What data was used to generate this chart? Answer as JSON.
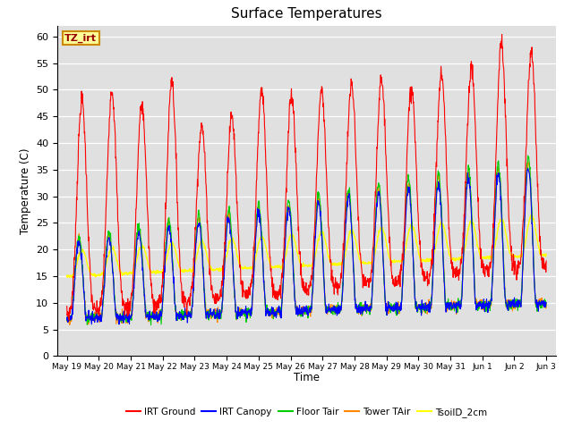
{
  "title": "Surface Temperatures",
  "ylabel": "Temperature (C)",
  "xlabel": "Time",
  "ylim": [
    0,
    62
  ],
  "yticks": [
    0,
    5,
    10,
    15,
    20,
    25,
    30,
    35,
    40,
    45,
    50,
    55,
    60
  ],
  "background_color": "#e0e0e0",
  "legend": {
    "IRT Ground": "#ff0000",
    "IRT Canopy": "#0000ff",
    "Floor Tair": "#00cc00",
    "Tower TAir": "#ff8800",
    "TsoilD_2cm": "#ffff00"
  },
  "annotation": "TZ_irt",
  "annotation_color": "#990000",
  "annotation_bg": "#ffff99",
  "annotation_edge": "#cc8800"
}
